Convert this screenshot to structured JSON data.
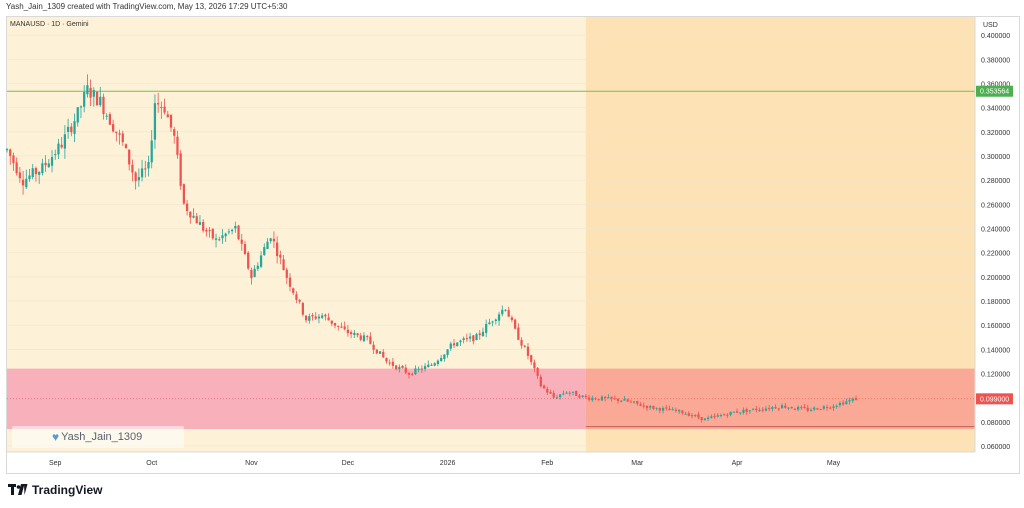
{
  "header": {
    "author_line": "Yash_Jain_1309 created with TradingView.com, May 13, 2026 17:29 UTC+5:30",
    "symbol_line": "MANAUSD · 1D · Gemini",
    "currency": "USD"
  },
  "watermark": {
    "text": "Yash_Jain_1309",
    "icon": "heart-icon"
  },
  "brand": {
    "name": "TradingView",
    "icon": "tradingview-logo-icon"
  },
  "colors": {
    "up": "#26a69a",
    "down": "#ef5350",
    "background_zone": "#fdf1d7",
    "forecast_zone": "#fde2b5",
    "support_zone": "#f7a8b7",
    "resistance_line": "#7bc043",
    "support_line": "#f0626b",
    "grid": "#f0e6cf"
  },
  "chart_data": {
    "type": "candlestick",
    "title": "MANAUSD · 1D · Gemini",
    "xlabel": "",
    "ylabel": "USD",
    "ylim": [
      0.055,
      0.415
    ],
    "x_ticks": [
      "Sep",
      "Oct",
      "Nov",
      "Dec",
      "2026",
      "Feb",
      "Mar",
      "Apr",
      "May"
    ],
    "y_ticks": [
      "0.400000",
      "0.380000",
      "0.360000",
      "0.340000",
      "0.320000",
      "0.300000",
      "0.280000",
      "0.260000",
      "0.240000",
      "0.220000",
      "0.200000",
      "0.180000",
      "0.160000",
      "0.140000",
      "0.120000",
      "0.100000",
      "0.080000",
      "0.060000"
    ],
    "date_ticks": [
      "2025-09-01",
      "2025-10-01",
      "2025-11-01",
      "2025-12-01",
      "2026-01-01",
      "2026-02-01",
      "2026-03-01",
      "2026-04-01",
      "2026-05-01"
    ],
    "x_range": [
      "2025-08-22",
      "2026-06-19"
    ],
    "forecast_start": "2026-02-18",
    "last_date": "2026-05-13",
    "price_labels": {
      "resistance": "0.353564",
      "last": "0.099000"
    },
    "resistance": 0.353564,
    "last_price": 0.099,
    "support_zone": [
      0.074,
      0.124
    ],
    "support_line": 0.076,
    "price_path": [
      {
        "date": "2025-08-22",
        "close": 0.305
      },
      {
        "date": "2025-08-27",
        "close": 0.28
      },
      {
        "date": "2025-09-02",
        "close": 0.29
      },
      {
        "date": "2025-09-08",
        "close": 0.31
      },
      {
        "date": "2025-09-13",
        "close": 0.335
      },
      {
        "date": "2025-09-16",
        "close": 0.355
      },
      {
        "date": "2025-09-20",
        "close": 0.345
      },
      {
        "date": "2025-09-27",
        "close": 0.31
      },
      {
        "date": "2025-10-01",
        "close": 0.28
      },
      {
        "date": "2025-10-05",
        "close": 0.29
      },
      {
        "date": "2025-10-07",
        "close": 0.345
      },
      {
        "date": "2025-10-10",
        "close": 0.34
      },
      {
        "date": "2025-10-13",
        "close": 0.315
      },
      {
        "date": "2025-10-16",
        "close": 0.26
      },
      {
        "date": "2025-10-22",
        "close": 0.24
      },
      {
        "date": "2025-10-26",
        "close": 0.23
      },
      {
        "date": "2025-11-01",
        "close": 0.24
      },
      {
        "date": "2025-11-06",
        "close": 0.2
      },
      {
        "date": "2025-11-12",
        "close": 0.235
      },
      {
        "date": "2025-11-17",
        "close": 0.2
      },
      {
        "date": "2025-11-23",
        "close": 0.165
      },
      {
        "date": "2025-11-28",
        "close": 0.168
      },
      {
        "date": "2025-12-05",
        "close": 0.155
      },
      {
        "date": "2025-12-12",
        "close": 0.148
      },
      {
        "date": "2025-12-18",
        "close": 0.13
      },
      {
        "date": "2025-12-25",
        "close": 0.12
      },
      {
        "date": "2026-01-01",
        "close": 0.127
      },
      {
        "date": "2026-01-08",
        "close": 0.145
      },
      {
        "date": "2026-01-15",
        "close": 0.15
      },
      {
        "date": "2026-01-20",
        "close": 0.165
      },
      {
        "date": "2026-01-24",
        "close": 0.175
      },
      {
        "date": "2026-01-27",
        "close": 0.155
      },
      {
        "date": "2026-01-31",
        "close": 0.135
      },
      {
        "date": "2026-02-04",
        "close": 0.11
      },
      {
        "date": "2026-02-08",
        "close": 0.1
      },
      {
        "date": "2026-02-12",
        "close": 0.105
      },
      {
        "date": "2026-02-18",
        "close": 0.1
      },
      {
        "date": "2026-03-01",
        "close": 0.098
      },
      {
        "date": "2026-03-10",
        "close": 0.092
      },
      {
        "date": "2026-03-20",
        "close": 0.088
      },
      {
        "date": "2026-03-27",
        "close": 0.082
      },
      {
        "date": "2026-04-05",
        "close": 0.088
      },
      {
        "date": "2026-04-20",
        "close": 0.093
      },
      {
        "date": "2026-04-28",
        "close": 0.09
      },
      {
        "date": "2026-05-05",
        "close": 0.093
      },
      {
        "date": "2026-05-13",
        "close": 0.099
      }
    ]
  }
}
